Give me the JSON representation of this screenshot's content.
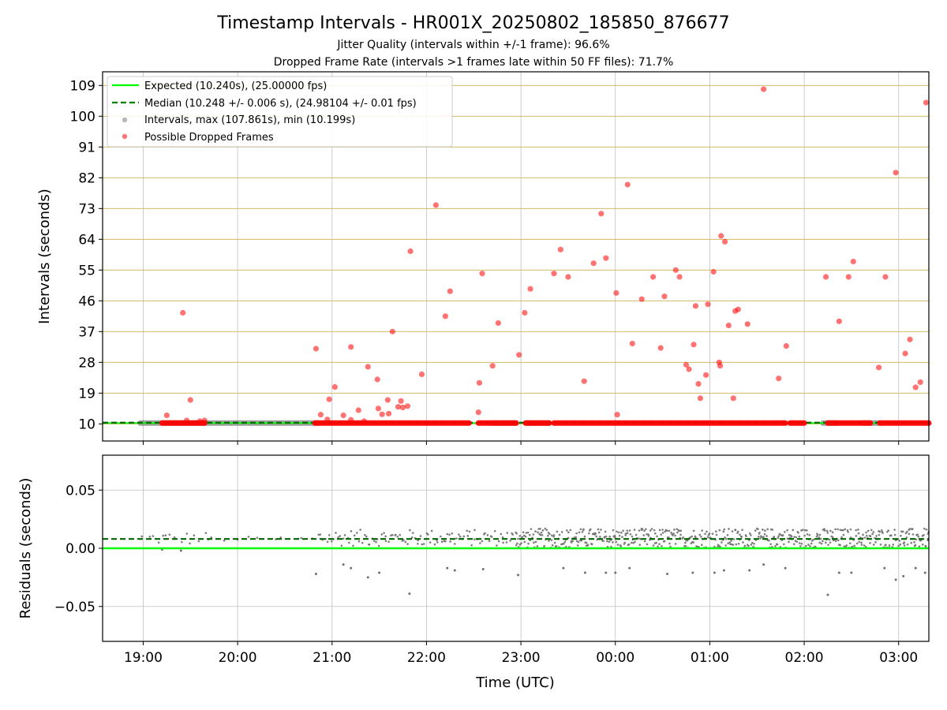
{
  "chart_data": {
    "type": "scatter",
    "title": "Timestamp Intervals - HR001X_20250802_185850_876677",
    "subtitle_1": "Jitter Quality (intervals within +/-1 frame): 96.6%",
    "subtitle_2": "Dropped Frame Rate (intervals >1 frames late within 50 FF files): 71.7%",
    "xlabel": "Time (UTC)",
    "x_ticks": [
      "19:00",
      "20:00",
      "21:00",
      "22:00",
      "23:00",
      "00:00",
      "01:00",
      "02:00",
      "03:00"
    ],
    "xlim_hours": [
      18.57,
      27.32
    ],
    "top": {
      "ylabel": "Intervals (seconds)",
      "ylim": [
        5,
        113
      ],
      "y_ticks": [
        10,
        19,
        28,
        37,
        46,
        55,
        64,
        73,
        82,
        91,
        100,
        109
      ],
      "grid": true,
      "legend_position": "top-left",
      "legend": [
        {
          "label": "Expected (10.240s), (25.00000 fps)",
          "color": "#00ff00",
          "style": "solid-line"
        },
        {
          "label": "Median (10.248 +/- 0.006 s), (24.98104 +/- 0.01 fps)",
          "color": "#007f00",
          "style": "dashed-line"
        },
        {
          "label": "Intervals, max (107.861s), min (10.199s)",
          "color": "#808080",
          "style": "marker"
        },
        {
          "label": "Possible Dropped Frames",
          "color": "#ff0000",
          "style": "marker"
        }
      ],
      "expected": 10.24,
      "median": 10.248,
      "interval_baseline_segments": [
        [
          18.97,
          20.85
        ],
        [
          22.7,
          22.95
        ],
        [
          23.05,
          23.3
        ],
        [
          26.2,
          26.35
        ],
        [
          26.62,
          26.8
        ]
      ],
      "dropped_baseline_segments": [
        [
          19.2,
          19.65
        ],
        [
          20.82,
          22.45
        ],
        [
          22.55,
          22.95
        ],
        [
          23.05,
          23.3
        ],
        [
          23.35,
          25.8
        ],
        [
          25.85,
          26.0
        ],
        [
          26.25,
          26.7
        ],
        [
          26.8,
          27.32
        ]
      ],
      "dropped_points": [
        [
          19.25,
          12.5
        ],
        [
          19.42,
          42.5
        ],
        [
          19.46,
          11.0
        ],
        [
          19.5,
          17.0
        ],
        [
          19.6,
          10.8
        ],
        [
          19.65,
          11.0
        ],
        [
          20.83,
          32.0
        ],
        [
          20.88,
          12.7
        ],
        [
          20.95,
          11.3
        ],
        [
          20.97,
          17.2
        ],
        [
          21.03,
          20.8
        ],
        [
          21.12,
          12.5
        ],
        [
          21.2,
          32.5
        ],
        [
          21.2,
          11.2
        ],
        [
          21.28,
          14.0
        ],
        [
          21.34,
          10.8
        ],
        [
          21.38,
          26.7
        ],
        [
          21.48,
          23.0
        ],
        [
          21.49,
          14.5
        ],
        [
          21.53,
          12.8
        ],
        [
          21.59,
          17.0
        ],
        [
          21.6,
          13.0
        ],
        [
          21.64,
          37.0
        ],
        [
          21.7,
          15.0
        ],
        [
          21.73,
          16.7
        ],
        [
          21.75,
          14.8
        ],
        [
          21.8,
          15.2
        ],
        [
          21.83,
          60.5
        ],
        [
          21.95,
          24.5
        ],
        [
          22.1,
          74.0
        ],
        [
          22.2,
          41.5
        ],
        [
          22.25,
          48.8
        ],
        [
          22.55,
          13.4
        ],
        [
          22.56,
          22.0
        ],
        [
          22.59,
          54.0
        ],
        [
          22.7,
          27.0
        ],
        [
          22.76,
          39.5
        ],
        [
          22.98,
          30.2
        ],
        [
          23.04,
          42.5
        ],
        [
          23.1,
          49.5
        ],
        [
          23.35,
          54.0
        ],
        [
          23.42,
          61.0
        ],
        [
          23.5,
          53.0
        ],
        [
          23.67,
          22.5
        ],
        [
          23.77,
          57.0
        ],
        [
          23.85,
          71.5
        ],
        [
          23.9,
          58.5
        ],
        [
          24.01,
          48.3
        ],
        [
          24.02,
          12.7
        ],
        [
          24.13,
          80.0
        ],
        [
          24.18,
          33.5
        ],
        [
          24.28,
          46.5
        ],
        [
          24.4,
          53.0
        ],
        [
          24.48,
          32.2
        ],
        [
          24.52,
          47.3
        ],
        [
          24.64,
          55.0
        ],
        [
          24.68,
          53.0
        ],
        [
          24.75,
          27.3
        ],
        [
          24.78,
          26.0
        ],
        [
          24.83,
          33.2
        ],
        [
          24.85,
          44.5
        ],
        [
          24.88,
          21.7
        ],
        [
          24.9,
          17.5
        ],
        [
          24.96,
          24.3
        ],
        [
          24.98,
          45.0
        ],
        [
          25.04,
          54.5
        ],
        [
          25.1,
          28.0
        ],
        [
          25.11,
          27.0
        ],
        [
          25.12,
          65.0
        ],
        [
          25.16,
          63.3
        ],
        [
          25.2,
          38.8
        ],
        [
          25.25,
          17.5
        ],
        [
          25.27,
          43.0
        ],
        [
          25.3,
          43.5
        ],
        [
          25.4,
          39.2
        ],
        [
          25.57,
          107.9
        ],
        [
          25.73,
          23.3
        ],
        [
          25.81,
          32.8
        ],
        [
          26.23,
          53.0
        ],
        [
          26.37,
          40.0
        ],
        [
          26.47,
          53.0
        ],
        [
          26.52,
          57.5
        ],
        [
          26.79,
          26.5
        ],
        [
          26.86,
          53.0
        ],
        [
          26.97,
          83.5
        ],
        [
          27.07,
          30.6
        ],
        [
          27.12,
          34.7
        ],
        [
          27.18,
          20.7
        ],
        [
          27.23,
          22.2
        ],
        [
          27.29,
          104.0
        ]
      ]
    },
    "bottom": {
      "ylabel": "Residuals (seconds)",
      "ylim": [
        -0.08,
        0.08
      ],
      "y_ticks": [
        "0.05",
        "0.00",
        "−0.05"
      ],
      "y_tick_values": [
        0.05,
        0.0,
        -0.05
      ],
      "expected_residual": 0.0,
      "median_residual": 0.008,
      "grid": true,
      "outlier_points": [
        [
          19.2,
          -0.001
        ],
        [
          19.4,
          -0.002
        ],
        [
          20.83,
          -0.022
        ],
        [
          21.12,
          -0.014
        ],
        [
          21.2,
          -0.017
        ],
        [
          21.38,
          -0.025
        ],
        [
          21.5,
          -0.021
        ],
        [
          21.82,
          -0.039
        ],
        [
          22.22,
          -0.017
        ],
        [
          22.3,
          -0.019
        ],
        [
          22.6,
          -0.018
        ],
        [
          22.97,
          -0.023
        ],
        [
          23.45,
          -0.017
        ],
        [
          23.68,
          -0.021
        ],
        [
          23.9,
          -0.021
        ],
        [
          24.0,
          -0.021
        ],
        [
          24.15,
          -0.017
        ],
        [
          24.55,
          -0.022
        ],
        [
          24.82,
          -0.021
        ],
        [
          25.05,
          -0.021
        ],
        [
          25.15,
          -0.019
        ],
        [
          25.42,
          -0.019
        ],
        [
          25.57,
          -0.014
        ],
        [
          25.8,
          -0.017
        ],
        [
          26.25,
          -0.04
        ],
        [
          26.37,
          -0.021
        ],
        [
          26.5,
          -0.021
        ],
        [
          26.85,
          -0.017
        ],
        [
          26.97,
          -0.027
        ],
        [
          27.05,
          -0.024
        ],
        [
          27.18,
          -0.017
        ],
        [
          27.28,
          -0.021
        ]
      ]
    }
  }
}
